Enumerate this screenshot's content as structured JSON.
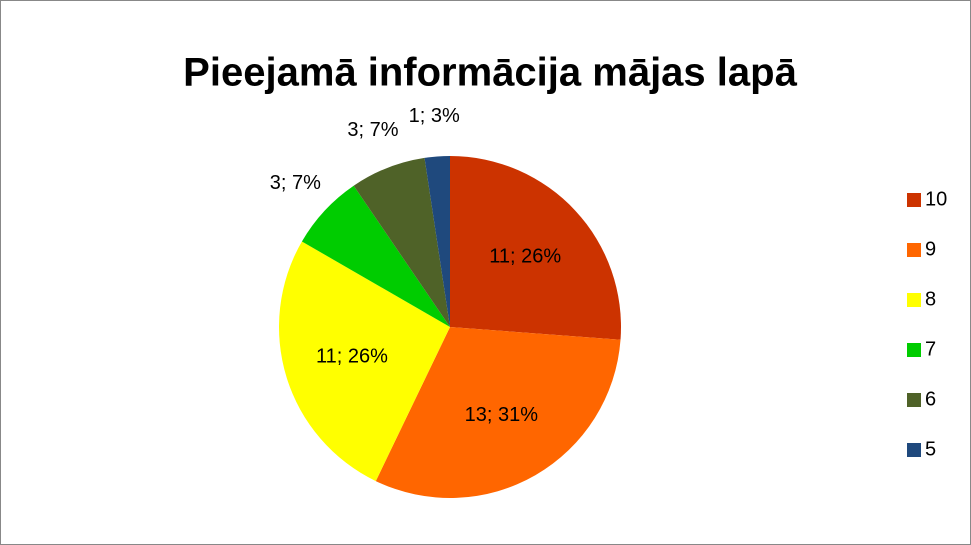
{
  "chart_data": {
    "type": "pie",
    "title": "Pieejamā informācija mājas lapā",
    "categories": [
      "10",
      "9",
      "8",
      "7",
      "6",
      "5"
    ],
    "values": [
      11,
      13,
      11,
      3,
      3,
      1
    ],
    "value_labels": [
      "11; 26%",
      "13; 31%",
      "11; 26%",
      "3; 7%",
      "3; 7%",
      "1; 3%"
    ],
    "colors": [
      "#cc3300",
      "#ff6600",
      "#ffff00",
      "#00cc00",
      "#4f6228",
      "#1f497d"
    ],
    "legend": "right"
  }
}
